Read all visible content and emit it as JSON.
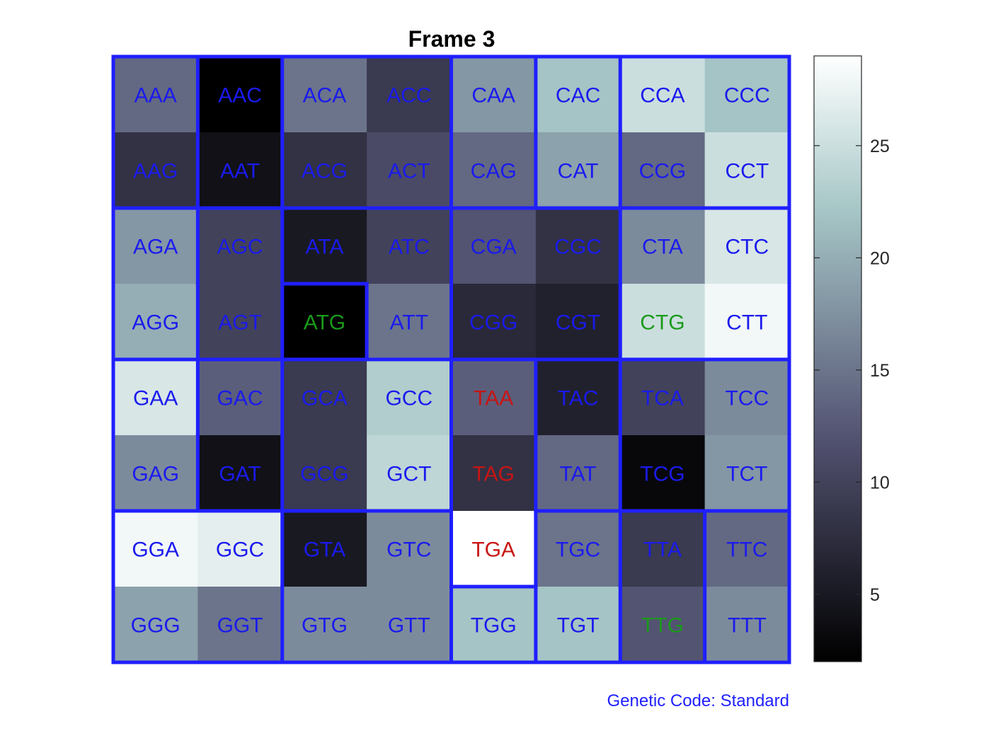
{
  "chart_data": {
    "type": "heatmap",
    "title": "Frame 3",
    "footer": "Genetic Code: Standard",
    "colorbar": {
      "range": [
        2,
        29
      ],
      "ticks": [
        5,
        10,
        15,
        20,
        25
      ],
      "colormap": "bone"
    },
    "label_colors": {
      "normal": "#1a1aee",
      "start": "#1a9a1a",
      "stop": "#c81414",
      "border": "#1f1fff"
    },
    "rows": [
      [
        {
          "codon": "AAA",
          "value": 14,
          "kind": "normal"
        },
        {
          "codon": "AAC",
          "value": 2,
          "kind": "normal"
        },
        {
          "codon": "ACA",
          "value": 15,
          "kind": "normal"
        },
        {
          "codon": "ACC",
          "value": 9,
          "kind": "normal"
        },
        {
          "codon": "CAA",
          "value": 18,
          "kind": "normal"
        },
        {
          "codon": "CAC",
          "value": 22,
          "kind": "normal"
        },
        {
          "codon": "CCA",
          "value": 25,
          "kind": "normal"
        },
        {
          "codon": "CCC",
          "value": 22,
          "kind": "normal"
        }
      ],
      [
        {
          "codon": "AAG",
          "value": 8,
          "kind": "normal"
        },
        {
          "codon": "AAT",
          "value": 4,
          "kind": "normal"
        },
        {
          "codon": "ACG",
          "value": 8,
          "kind": "normal"
        },
        {
          "codon": "ACT",
          "value": 11,
          "kind": "normal"
        },
        {
          "codon": "CAG",
          "value": 14,
          "kind": "normal"
        },
        {
          "codon": "CAT",
          "value": 19,
          "kind": "normal"
        },
        {
          "codon": "CCG",
          "value": 14,
          "kind": "normal"
        },
        {
          "codon": "CCT",
          "value": 25,
          "kind": "normal"
        }
      ],
      [
        {
          "codon": "AGA",
          "value": 18,
          "kind": "normal"
        },
        {
          "codon": "AGC",
          "value": 10,
          "kind": "normal"
        },
        {
          "codon": "ATA",
          "value": 5,
          "kind": "normal"
        },
        {
          "codon": "ATC",
          "value": 10,
          "kind": "normal"
        },
        {
          "codon": "CGA",
          "value": 12,
          "kind": "normal"
        },
        {
          "codon": "CGC",
          "value": 8,
          "kind": "normal"
        },
        {
          "codon": "CTA",
          "value": 17,
          "kind": "normal"
        },
        {
          "codon": "CTC",
          "value": 26,
          "kind": "normal"
        }
      ],
      [
        {
          "codon": "AGG",
          "value": 20,
          "kind": "normal"
        },
        {
          "codon": "AGT",
          "value": 10,
          "kind": "normal"
        },
        {
          "codon": "ATG",
          "value": 2,
          "kind": "start"
        },
        {
          "codon": "ATT",
          "value": 15,
          "kind": "normal"
        },
        {
          "codon": "CGG",
          "value": 7,
          "kind": "normal"
        },
        {
          "codon": "CGT",
          "value": 6,
          "kind": "normal"
        },
        {
          "codon": "CTG",
          "value": 25,
          "kind": "start"
        },
        {
          "codon": "CTT",
          "value": 28,
          "kind": "normal"
        }
      ],
      [
        {
          "codon": "GAA",
          "value": 26,
          "kind": "normal"
        },
        {
          "codon": "GAC",
          "value": 13,
          "kind": "normal"
        },
        {
          "codon": "GCA",
          "value": 9,
          "kind": "normal"
        },
        {
          "codon": "GCC",
          "value": 23,
          "kind": "normal"
        },
        {
          "codon": "TAA",
          "value": 13,
          "kind": "stop"
        },
        {
          "codon": "TAC",
          "value": 6,
          "kind": "normal"
        },
        {
          "codon": "TCA",
          "value": 10,
          "kind": "normal"
        },
        {
          "codon": "TCC",
          "value": 17,
          "kind": "normal"
        }
      ],
      [
        {
          "codon": "GAG",
          "value": 17,
          "kind": "normal"
        },
        {
          "codon": "GAT",
          "value": 4,
          "kind": "normal"
        },
        {
          "codon": "GCG",
          "value": 9,
          "kind": "normal"
        },
        {
          "codon": "GCT",
          "value": 24,
          "kind": "normal"
        },
        {
          "codon": "TAG",
          "value": 8,
          "kind": "stop"
        },
        {
          "codon": "TAT",
          "value": 14,
          "kind": "normal"
        },
        {
          "codon": "TCG",
          "value": 3,
          "kind": "normal"
        },
        {
          "codon": "TCT",
          "value": 18,
          "kind": "normal"
        }
      ],
      [
        {
          "codon": "GGA",
          "value": 28,
          "kind": "normal"
        },
        {
          "codon": "GGC",
          "value": 27,
          "kind": "normal"
        },
        {
          "codon": "GTA",
          "value": 5,
          "kind": "normal"
        },
        {
          "codon": "GTC",
          "value": 17,
          "kind": "normal"
        },
        {
          "codon": "TGA",
          "value": 29,
          "kind": "stop"
        },
        {
          "codon": "TGC",
          "value": 15,
          "kind": "normal"
        },
        {
          "codon": "TTA",
          "value": 9,
          "kind": "normal"
        },
        {
          "codon": "TTC",
          "value": 14,
          "kind": "normal"
        }
      ],
      [
        {
          "codon": "GGG",
          "value": 19,
          "kind": "normal"
        },
        {
          "codon": "GGT",
          "value": 15,
          "kind": "normal"
        },
        {
          "codon": "GTG",
          "value": 17,
          "kind": "normal"
        },
        {
          "codon": "GTT",
          "value": 17,
          "kind": "normal"
        },
        {
          "codon": "TGG",
          "value": 22,
          "kind": "normal"
        },
        {
          "codon": "TGT",
          "value": 22,
          "kind": "normal"
        },
        {
          "codon": "TTG",
          "value": 12,
          "kind": "start"
        },
        {
          "codon": "TTT",
          "value": 17,
          "kind": "normal"
        }
      ]
    ]
  }
}
